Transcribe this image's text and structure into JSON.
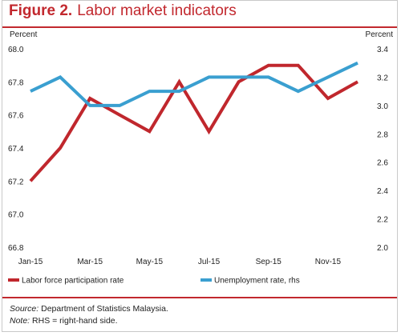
{
  "figure": {
    "label": "Figure 2.",
    "title": "Labor market indicators",
    "source_label": "Source:",
    "source_text": "Department of Statistics Malaysia.",
    "note_label": "Note:",
    "note_text": "RHS = right-hand side."
  },
  "chart_data": {
    "type": "line",
    "title": "Labor market indicators",
    "x": [
      "Jan-15",
      "Feb-15",
      "Mar-15",
      "Apr-15",
      "May-15",
      "Jun-15",
      "Jul-15",
      "Aug-15",
      "Sep-15",
      "Oct-15",
      "Nov-15",
      "Dec-15"
    ],
    "xtick_labels": [
      "Jan-15",
      "Mar-15",
      "May-15",
      "Jul-15",
      "Sep-15",
      "Nov-15"
    ],
    "left_axis": {
      "label": "Percent",
      "ylim": [
        66.8,
        68.0
      ],
      "ticks": [
        "68.0",
        "67.8",
        "67.6",
        "67.4",
        "67.2",
        "67.0",
        "66.8"
      ]
    },
    "right_axis": {
      "label": "Percent",
      "ylim": [
        2.0,
        3.4
      ],
      "ticks": [
        "3.4",
        "3.2",
        "3.0",
        "2.8",
        "2.6",
        "2.4",
        "2.2",
        "2.0"
      ]
    },
    "series": [
      {
        "name": "Labor force participation rate",
        "axis": "left",
        "color": "#c0272d",
        "values": [
          67.2,
          67.4,
          67.7,
          67.6,
          67.5,
          67.8,
          67.5,
          67.8,
          67.9,
          67.9,
          67.7,
          67.8
        ]
      },
      {
        "name": "Unemployment rate, rhs",
        "axis": "right",
        "color": "#3a9fd0",
        "values": [
          3.1,
          3.2,
          3.0,
          3.0,
          3.1,
          3.1,
          3.2,
          3.2,
          3.2,
          3.1,
          3.2,
          3.3
        ]
      }
    ],
    "grid": false,
    "legend_placement": "bottom"
  }
}
